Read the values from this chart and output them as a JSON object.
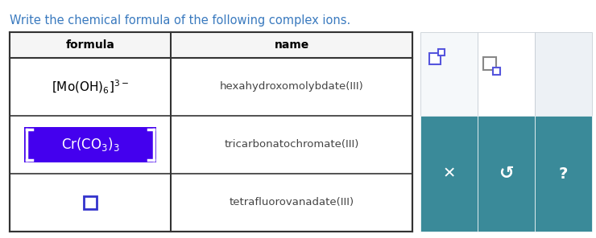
{
  "title": "Write the chemical formula of the following complex ions.",
  "title_color": "#3a7abf",
  "title_fontsize": 10.5,
  "bg_color": "#ffffff",
  "col1_header": "formula",
  "col2_header": "name",
  "rows": [
    {
      "name_text": "hexahydroxomolybdate(III)",
      "formula_bg": "#ffffff",
      "formula_text_color": "#000000"
    },
    {
      "name_text": "tricarbonatochromate(III)",
      "formula_bg": "#4400ee",
      "formula_text_color": "#ffffff"
    },
    {
      "name_text": "tetrafluorovanadate(III)",
      "formula_bg": "#ffffff",
      "formula_text_color": "#4444ff"
    }
  ],
  "sidebar_light_bg": "#e8eef4",
  "sidebar_light_right_bg": "#f0f3f6",
  "sidebar_teal": "#3a8a99",
  "table_border": "#333333",
  "name_text_color": "#444444",
  "header_bg": "#ffffff"
}
